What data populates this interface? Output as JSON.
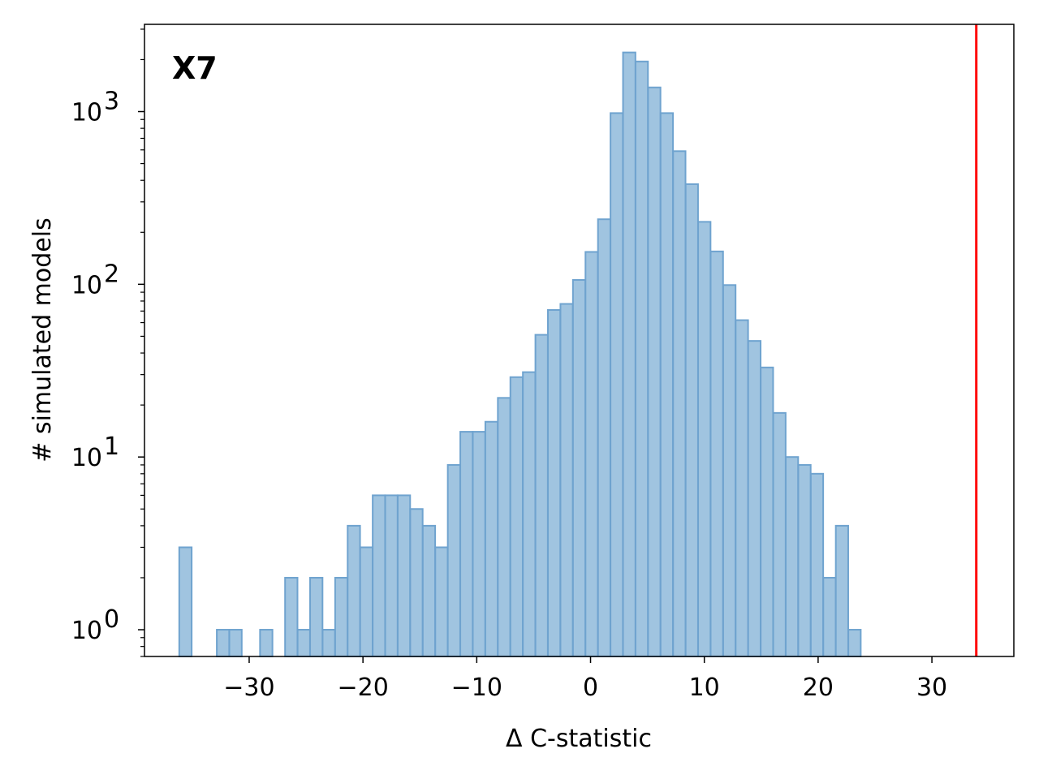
{
  "chart_data": {
    "type": "bar",
    "panel_label": "X7",
    "xlabel": "Δ C-statistic",
    "ylabel": "# simulated models",
    "yscale": "log",
    "xlim": [
      -39.2,
      37.2
    ],
    "ylim": [
      0.7,
      3200
    ],
    "xticks": [
      -30,
      -20,
      -10,
      0,
      10,
      20,
      30
    ],
    "xtick_labels": [
      "−30",
      "−20",
      "−10",
      "0",
      "10",
      "20",
      "30"
    ],
    "yticks": [
      1,
      10,
      100,
      1000
    ],
    "ytick_labels": [
      {
        "base": "10",
        "exp": "0"
      },
      {
        "base": "10",
        "exp": "1"
      },
      {
        "base": "10",
        "exp": "2"
      },
      {
        "base": "10",
        "exp": "3"
      }
    ],
    "bin_width": 1.09,
    "bins": [
      {
        "x": -35.6,
        "count": 3
      },
      {
        "x": -32.3,
        "count": 1
      },
      {
        "x": -31.2,
        "count": 1
      },
      {
        "x": -28.5,
        "count": 1
      },
      {
        "x": -26.3,
        "count": 2
      },
      {
        "x": -25.2,
        "count": 1
      },
      {
        "x": -24.1,
        "count": 2
      },
      {
        "x": -23.0,
        "count": 1
      },
      {
        "x": -21.9,
        "count": 2
      },
      {
        "x": -20.8,
        "count": 4
      },
      {
        "x": -19.7,
        "count": 3
      },
      {
        "x": -18.6,
        "count": 6
      },
      {
        "x": -17.5,
        "count": 6
      },
      {
        "x": -16.4,
        "count": 6
      },
      {
        "x": -15.3,
        "count": 5
      },
      {
        "x": -14.2,
        "count": 4
      },
      {
        "x": -13.1,
        "count": 3
      },
      {
        "x": -12.0,
        "count": 9
      },
      {
        "x": -10.9,
        "count": 14
      },
      {
        "x": -9.8,
        "count": 14
      },
      {
        "x": -8.7,
        "count": 16
      },
      {
        "x": -7.6,
        "count": 22
      },
      {
        "x": -6.5,
        "count": 29
      },
      {
        "x": -5.4,
        "count": 31
      },
      {
        "x": -4.3,
        "count": 51
      },
      {
        "x": -3.2,
        "count": 71
      },
      {
        "x": -2.1,
        "count": 77
      },
      {
        "x": -1.0,
        "count": 106
      },
      {
        "x": 0.1,
        "count": 154
      },
      {
        "x": 1.2,
        "count": 238
      },
      {
        "x": 2.3,
        "count": 980
      },
      {
        "x": 3.4,
        "count": 2200
      },
      {
        "x": 4.5,
        "count": 1950
      },
      {
        "x": 5.6,
        "count": 1380
      },
      {
        "x": 6.7,
        "count": 980
      },
      {
        "x": 7.8,
        "count": 590
      },
      {
        "x": 8.9,
        "count": 380
      },
      {
        "x": 10.0,
        "count": 230
      },
      {
        "x": 11.1,
        "count": 155
      },
      {
        "x": 12.2,
        "count": 99
      },
      {
        "x": 13.3,
        "count": 62
      },
      {
        "x": 14.4,
        "count": 47
      },
      {
        "x": 15.5,
        "count": 33
      },
      {
        "x": 16.6,
        "count": 18
      },
      {
        "x": 17.7,
        "count": 10
      },
      {
        "x": 18.8,
        "count": 9
      },
      {
        "x": 19.9,
        "count": 8
      },
      {
        "x": 21.0,
        "count": 2
      },
      {
        "x": 22.1,
        "count": 4
      },
      {
        "x": 23.2,
        "count": 1
      }
    ],
    "reference_line": {
      "x": 33.9,
      "color": "#ff0000"
    },
    "bar_fill": "#a0c4e0",
    "bar_edge": "#6fa3cf",
    "grid": false,
    "legend": "none"
  }
}
